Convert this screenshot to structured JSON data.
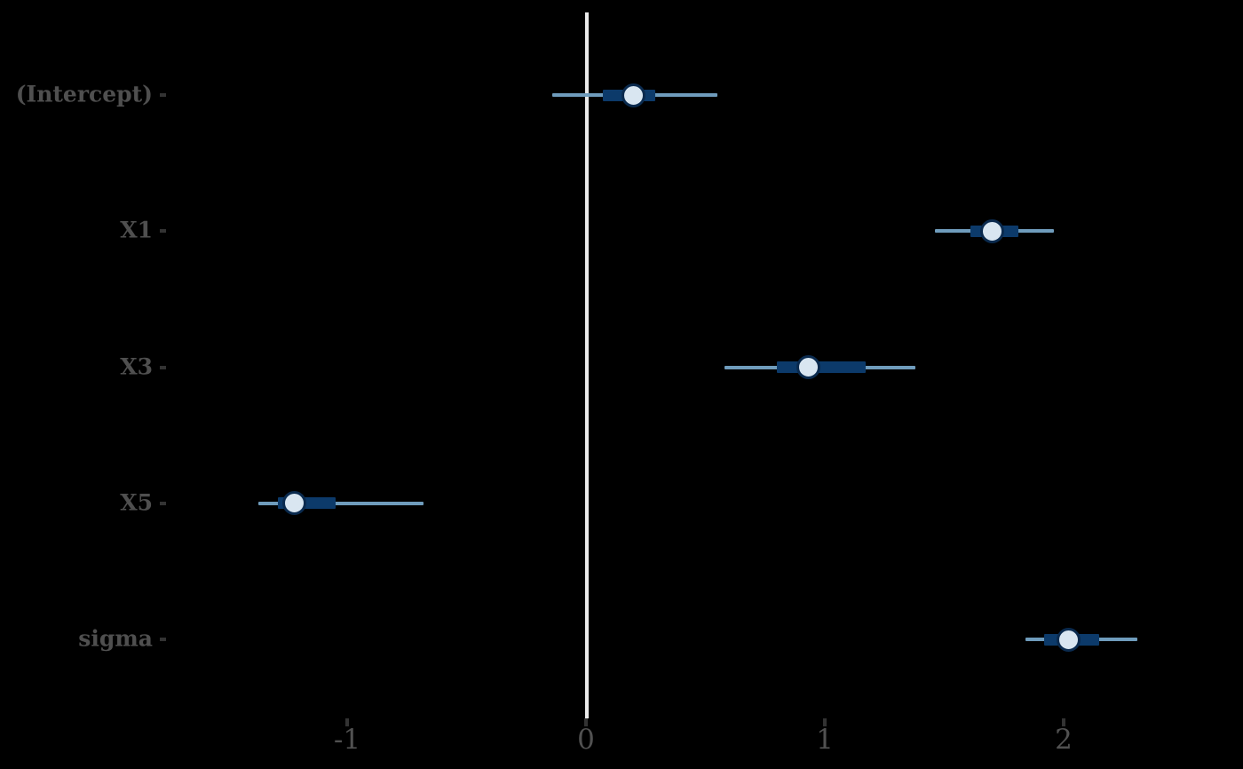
{
  "figure": {
    "title": "",
    "background_color": "#000000"
  },
  "colors": {
    "outer_interval": "#6f9cbc",
    "inner_interval": "#0c3a6a",
    "point_fill": "#d9e6f1",
    "point_stroke": "#0a2a4e",
    "zero_line": "#ebebeb",
    "y_label_text": "#4f4f4f",
    "x_tick_text": "#515151",
    "tick_mark": "#333333"
  },
  "chart_data": {
    "type": "scatter",
    "subtype": "interval-forest-plot",
    "title": "",
    "xlabel": "",
    "ylabel": "",
    "grid": false,
    "legend": false,
    "zero_reference_line": 0,
    "xlim": [
      -1.75,
      2.75
    ],
    "x_ticks": [
      {
        "value": -1,
        "label": "-1"
      },
      {
        "value": 0,
        "label": "0"
      },
      {
        "value": 1,
        "label": "1"
      },
      {
        "value": 2,
        "label": "2"
      }
    ],
    "parameters": [
      {
        "name": "(Intercept)",
        "point": 0.2,
        "inner": [
          0.07,
          0.29
        ],
        "outer": [
          -0.14,
          0.55
        ]
      },
      {
        "name": "X1",
        "point": 1.7,
        "inner": [
          1.61,
          1.81
        ],
        "outer": [
          1.46,
          1.96
        ]
      },
      {
        "name": "X3",
        "point": 0.93,
        "inner": [
          0.8,
          1.17
        ],
        "outer": [
          0.58,
          1.38
        ]
      },
      {
        "name": "X5",
        "point": -1.22,
        "inner": [
          -1.29,
          -1.05
        ],
        "outer": [
          -1.37,
          -0.68
        ]
      },
      {
        "name": "sigma",
        "point": 2.02,
        "inner": [
          1.92,
          2.15
        ],
        "outer": [
          1.84,
          2.31
        ]
      }
    ]
  }
}
